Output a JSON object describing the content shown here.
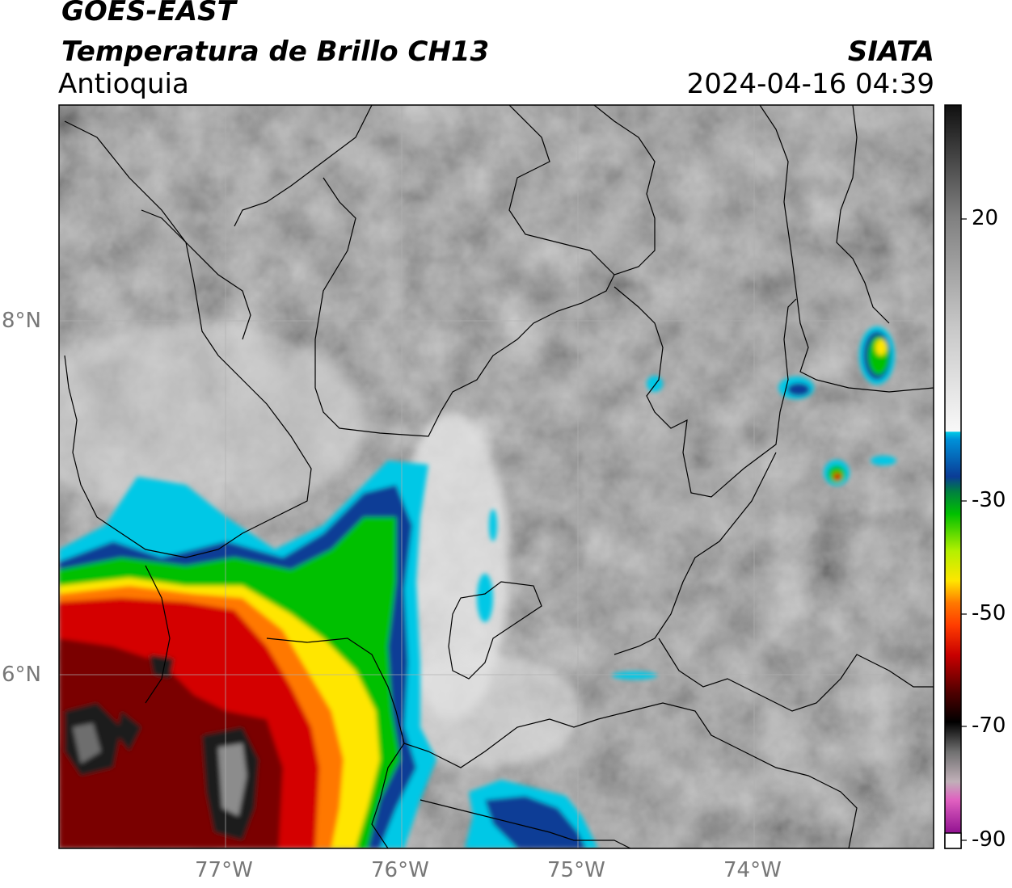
{
  "header": {
    "satellite": "GOES-EAST",
    "product": "Temperatura de Brillo CH13",
    "region": "Antioquia",
    "organization": "SIATA",
    "datetime": "2024-04-16 04:39"
  },
  "map": {
    "lon_range": [
      -77.97,
      -72.97
    ],
    "lat_range": [
      4.9,
      9.15
    ],
    "lat_ticks": [
      {
        "value": 8,
        "label": "8°N"
      },
      {
        "value": 6,
        "label": "6°N"
      }
    ],
    "lon_ticks": [
      {
        "value": -77,
        "label": "77°W"
      },
      {
        "value": -76,
        "label": "76°W"
      },
      {
        "value": -75,
        "label": "75°W"
      },
      {
        "value": -74,
        "label": "74°W"
      }
    ],
    "gridlines": true
  },
  "colorbar": {
    "ticks": [
      {
        "value": 20,
        "label": "20"
      },
      {
        "value": -30,
        "label": "-30"
      },
      {
        "value": -50,
        "label": "-50"
      },
      {
        "value": -70,
        "label": "-70"
      },
      {
        "value": -90,
        "label": "-90"
      }
    ],
    "colors": {
      "warm_dark": "#1a1a1a",
      "warm_gray": "#8c8c8c",
      "light": "#f4f4f4",
      "cyan": "#00c8e6",
      "blue": "#0a3c96",
      "green": "#00c000",
      "yellow": "#ffe600",
      "orange": "#ff7800",
      "red": "#c80000",
      "dark_red": "#500000",
      "black": "#000000",
      "pink": "#e060c0",
      "purple": "#901090"
    }
  }
}
